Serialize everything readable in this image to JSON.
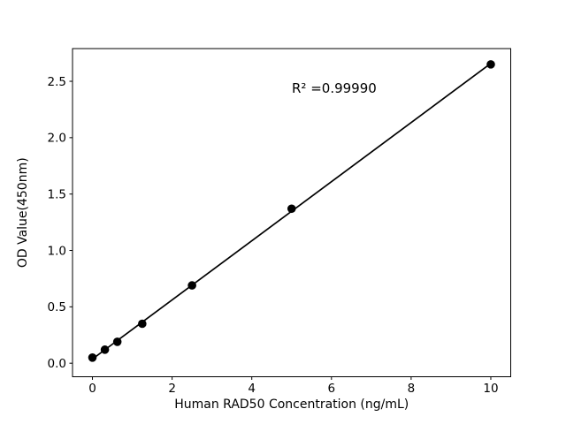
{
  "figure": {
    "background": "#ffffff",
    "foreground": "#000000"
  },
  "chart_data": {
    "type": "scatter",
    "title": "",
    "xlabel": "Human RAD50 Concentration (ng/mL)",
    "ylabel": "OD Value(450nm)",
    "x": [
      0,
      0.3125,
      0.625,
      1.25,
      2.5,
      5,
      10
    ],
    "y": [
      0.05,
      0.12,
      0.19,
      0.35,
      0.69,
      1.37,
      2.65
    ],
    "x_ticks": [
      0,
      2,
      4,
      6,
      8,
      10
    ],
    "y_ticks": [
      0.0,
      0.5,
      1.0,
      1.5,
      2.0,
      2.5
    ],
    "xlim": [
      -0.5,
      10.5
    ],
    "ylim": [
      -0.12,
      2.79
    ],
    "grid": false,
    "legend": false,
    "marker_color": "#000000",
    "line_color": "#000000",
    "fit_line": {
      "type": "linear",
      "annotation": "R² =0.99990"
    }
  }
}
